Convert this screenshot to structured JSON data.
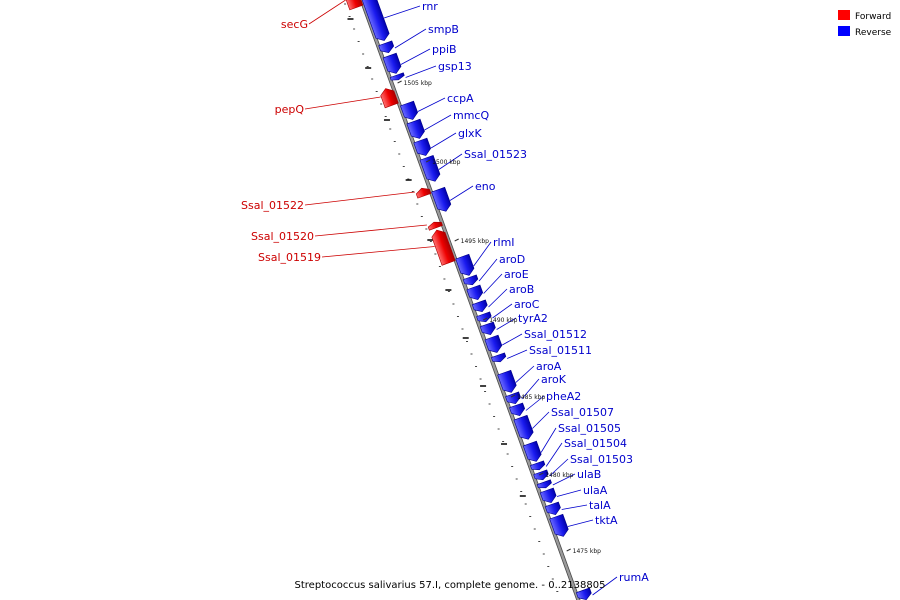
{
  "legend": {
    "forward": {
      "label": "Forward",
      "color": "#ff0000"
    },
    "reverse": {
      "label": "Reverse",
      "color": "#0000ff"
    }
  },
  "caption": "Streptococcus salivarius 57.I, complete genome. - 0..2138805",
  "colors": {
    "backbone": "#9a9a9a",
    "backbone_edge": "#4a4a4a",
    "forward_label": "#cc0000",
    "reverse_label": "#0000cc",
    "forward_fill": "#ee0000",
    "reverse_fill": "#1a1aee"
  },
  "scale_ticks": [
    {
      "label": "1505 kbp"
    },
    {
      "label": "1500 kbp"
    },
    {
      "label": "1495 kbp"
    },
    {
      "label": "1490 kbp"
    },
    {
      "label": "1485 kbp"
    },
    {
      "label": "1480 kbp"
    },
    {
      "label": "1475 kbp"
    }
  ],
  "genes": [
    {
      "name": "secG",
      "strand": "forward"
    },
    {
      "name": "rnr",
      "strand": "reverse"
    },
    {
      "name": "smpB",
      "strand": "reverse"
    },
    {
      "name": "ppiB",
      "strand": "reverse"
    },
    {
      "name": "gsp13",
      "strand": "reverse"
    },
    {
      "name": "pepQ",
      "strand": "forward"
    },
    {
      "name": "ccpA",
      "strand": "reverse"
    },
    {
      "name": "mmcQ",
      "strand": "reverse"
    },
    {
      "name": "glxK",
      "strand": "reverse"
    },
    {
      "name": "Ssal_01523",
      "strand": "reverse"
    },
    {
      "name": "eno",
      "strand": "reverse"
    },
    {
      "name": "Ssal_01522",
      "strand": "forward"
    },
    {
      "name": "Ssal_01520",
      "strand": "forward"
    },
    {
      "name": "Ssal_01519",
      "strand": "forward"
    },
    {
      "name": "rlmI",
      "strand": "reverse"
    },
    {
      "name": "aroD",
      "strand": "reverse"
    },
    {
      "name": "aroE",
      "strand": "reverse"
    },
    {
      "name": "aroB",
      "strand": "reverse"
    },
    {
      "name": "aroC",
      "strand": "reverse"
    },
    {
      "name": "tyrA2",
      "strand": "reverse"
    },
    {
      "name": "Ssal_01512",
      "strand": "reverse"
    },
    {
      "name": "Ssal_01511",
      "strand": "reverse"
    },
    {
      "name": "aroA",
      "strand": "reverse"
    },
    {
      "name": "aroK",
      "strand": "reverse"
    },
    {
      "name": "pheA2",
      "strand": "reverse"
    },
    {
      "name": "Ssal_01507",
      "strand": "reverse"
    },
    {
      "name": "Ssal_01505",
      "strand": "reverse"
    },
    {
      "name": "Ssal_01504",
      "strand": "reverse"
    },
    {
      "name": "Ssal_01503",
      "strand": "reverse"
    },
    {
      "name": "ulaB",
      "strand": "reverse"
    },
    {
      "name": "ulaA",
      "strand": "reverse"
    },
    {
      "name": "talA",
      "strand": "reverse"
    },
    {
      "name": "tktA",
      "strand": "reverse"
    },
    {
      "name": "rumA",
      "strand": "reverse"
    }
  ]
}
